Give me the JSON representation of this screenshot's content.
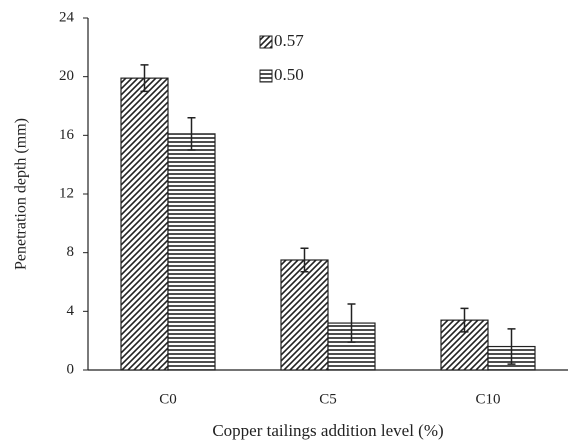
{
  "chart_data": {
    "type": "bar",
    "x_label": "Copper tailings addition level (%)",
    "y_label": "Penetration depth (mm)",
    "categories": [
      "C0",
      "C5",
      "C10"
    ],
    "series": [
      {
        "name": "0.57",
        "color": "#222222",
        "hatch": "diagonal",
        "values": [
          19.9,
          7.5,
          3.4
        ],
        "errors": [
          0.9,
          0.8,
          0.8
        ]
      },
      {
        "name": "0.50",
        "color": "#222222",
        "hatch": "horizontal",
        "values": [
          16.1,
          3.2,
          1.6
        ],
        "errors": [
          1.1,
          1.3,
          1.2
        ]
      }
    ],
    "ylim": [
      0,
      24
    ],
    "yticks": [
      0,
      4,
      8,
      12,
      16,
      20,
      24
    ],
    "grid": false
  }
}
